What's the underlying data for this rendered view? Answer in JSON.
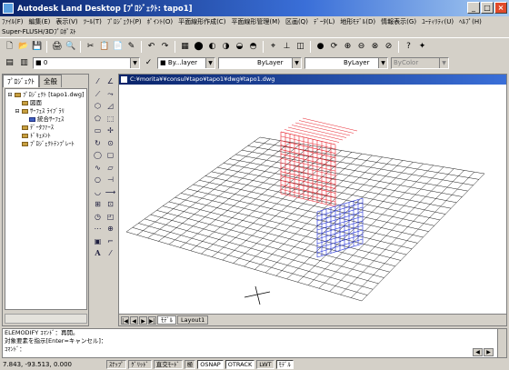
{
  "window": {
    "title": "Autodesk Land Desktop [ﾌﾟﾛｼﾞｪｸﾄ: tapo1]",
    "minimize": "_",
    "maximize": "□",
    "close": "×"
  },
  "menubar": [
    "ﾌｧｲﾙ(F)",
    "編集(E)",
    "表示(V)",
    "ﾂｰﾙ(T)",
    "ﾌﾟﾛｼﾞｪｸﾄ(P)",
    "ﾎﾟｲﾝﾄ(O)",
    "平面線形作成(C)",
    "平面線形管理(M)",
    "区画(Q)",
    "ﾃﾞｰﾀ(L)",
    "地形ﾓﾃﾞﾙ(D)",
    "情報表示(G)",
    "ﾕｰﾃｨﾘﾃｨ(U)",
    "ﾍﾙﾌﾟ(H)"
  ],
  "subbar": "Super-FLUSH/3Dﾌﾟﾛﾎﾟｽﾄ",
  "toolbar1": [
    "🗋",
    "📂",
    "💾",
    "",
    "🖨",
    "🔍",
    "",
    "✂",
    "📋",
    "📄",
    "✎",
    "",
    "↶",
    "↷",
    "",
    "▦",
    "⬤",
    "◐",
    "◑",
    "◒",
    "◓",
    "",
    "⌖",
    "⊥",
    "◫",
    "",
    "●",
    "⟳",
    "⊕",
    "⊖",
    "⊗",
    "⊘",
    "",
    "?",
    "✦"
  ],
  "toolbar2": {
    "layer": "■ 0",
    "color": "■ By...layer",
    "linetype": "ByLayer",
    "lineweight": "ByLayer",
    "plotstyle": "ByColor"
  },
  "leftpanel": {
    "tabs": [
      "ﾌﾟﾛｼﾞｪｸﾄ",
      "全般"
    ],
    "tree": [
      {
        "toggle": "⊟",
        "label": "ﾌﾟﾛｼﾞｪｸﾄ [tapo1.dwg]",
        "icon": "folder"
      },
      {
        "toggle": "",
        "label": "図面",
        "icon": "folder"
      },
      {
        "toggle": "⊟",
        "label": "ｻｰﾌｪｽ ﾗｲﾌﾞﾗﾘ",
        "icon": "folder"
      },
      {
        "toggle": "",
        "label": "統合ｻｰﾌｪｽ",
        "icon": "blue"
      },
      {
        "toggle": "",
        "label": "ﾃﾞｰﾀﾌｧｰｽ",
        "icon": "folder"
      },
      {
        "toggle": "",
        "label": "ﾄﾞｷｭﾒﾝﾄ",
        "icon": "folder"
      },
      {
        "toggle": "",
        "label": "ﾌﾟﾛｼﾞｪｸﾄﾃﾝﾌﾟﾚｰﾄ",
        "icon": "folder"
      }
    ]
  },
  "palette": [
    "⁄",
    "∠",
    "⟋",
    "⤳",
    "⬡",
    "◿",
    "⬠",
    "⬚",
    "▭",
    "✢",
    "↻",
    "⊙",
    "◯",
    "▢",
    "∿",
    "▱",
    "○",
    "⊣",
    "◡",
    "⟶",
    "⊞",
    "⊡",
    "◷",
    "◰",
    "⋯",
    "⊕",
    "▣",
    "⌐",
    "A",
    "⁄"
  ],
  "drawing": {
    "title": "C:¥morita¥¥consul¥tapo¥tapo1¥dwg¥tapo1.dwg",
    "tabs": [
      "ﾓﾃﾞﾙ",
      "Layout1"
    ]
  },
  "command": {
    "lines": [
      "ELEMODIFY ｺﾏﾝﾄﾞ：再開。",
      "対象要素を指示[Enter=キャンセル]：",
      "ｺﾏﾝﾄﾞ："
    ]
  },
  "status": {
    "coords": "7.843,    -93.513, 0.000",
    "buttons": [
      {
        "label": "ｽﾅｯﾌﾟ",
        "on": false
      },
      {
        "label": "ｸﾞﾘｯﾄﾞ",
        "on": false
      },
      {
        "label": "直交ﾓｰﾄﾞ",
        "on": false
      },
      {
        "label": "極",
        "on": false
      },
      {
        "label": "OSNAP",
        "on": true
      },
      {
        "label": "OTRACK",
        "on": true
      },
      {
        "label": "LWT",
        "on": false
      },
      {
        "label": "ﾓﾃﾞﾙ",
        "on": true
      }
    ]
  },
  "colors": {
    "grid": "#1a1a1a",
    "red_block": "#e8202a",
    "blue_block": "#2030d8"
  }
}
